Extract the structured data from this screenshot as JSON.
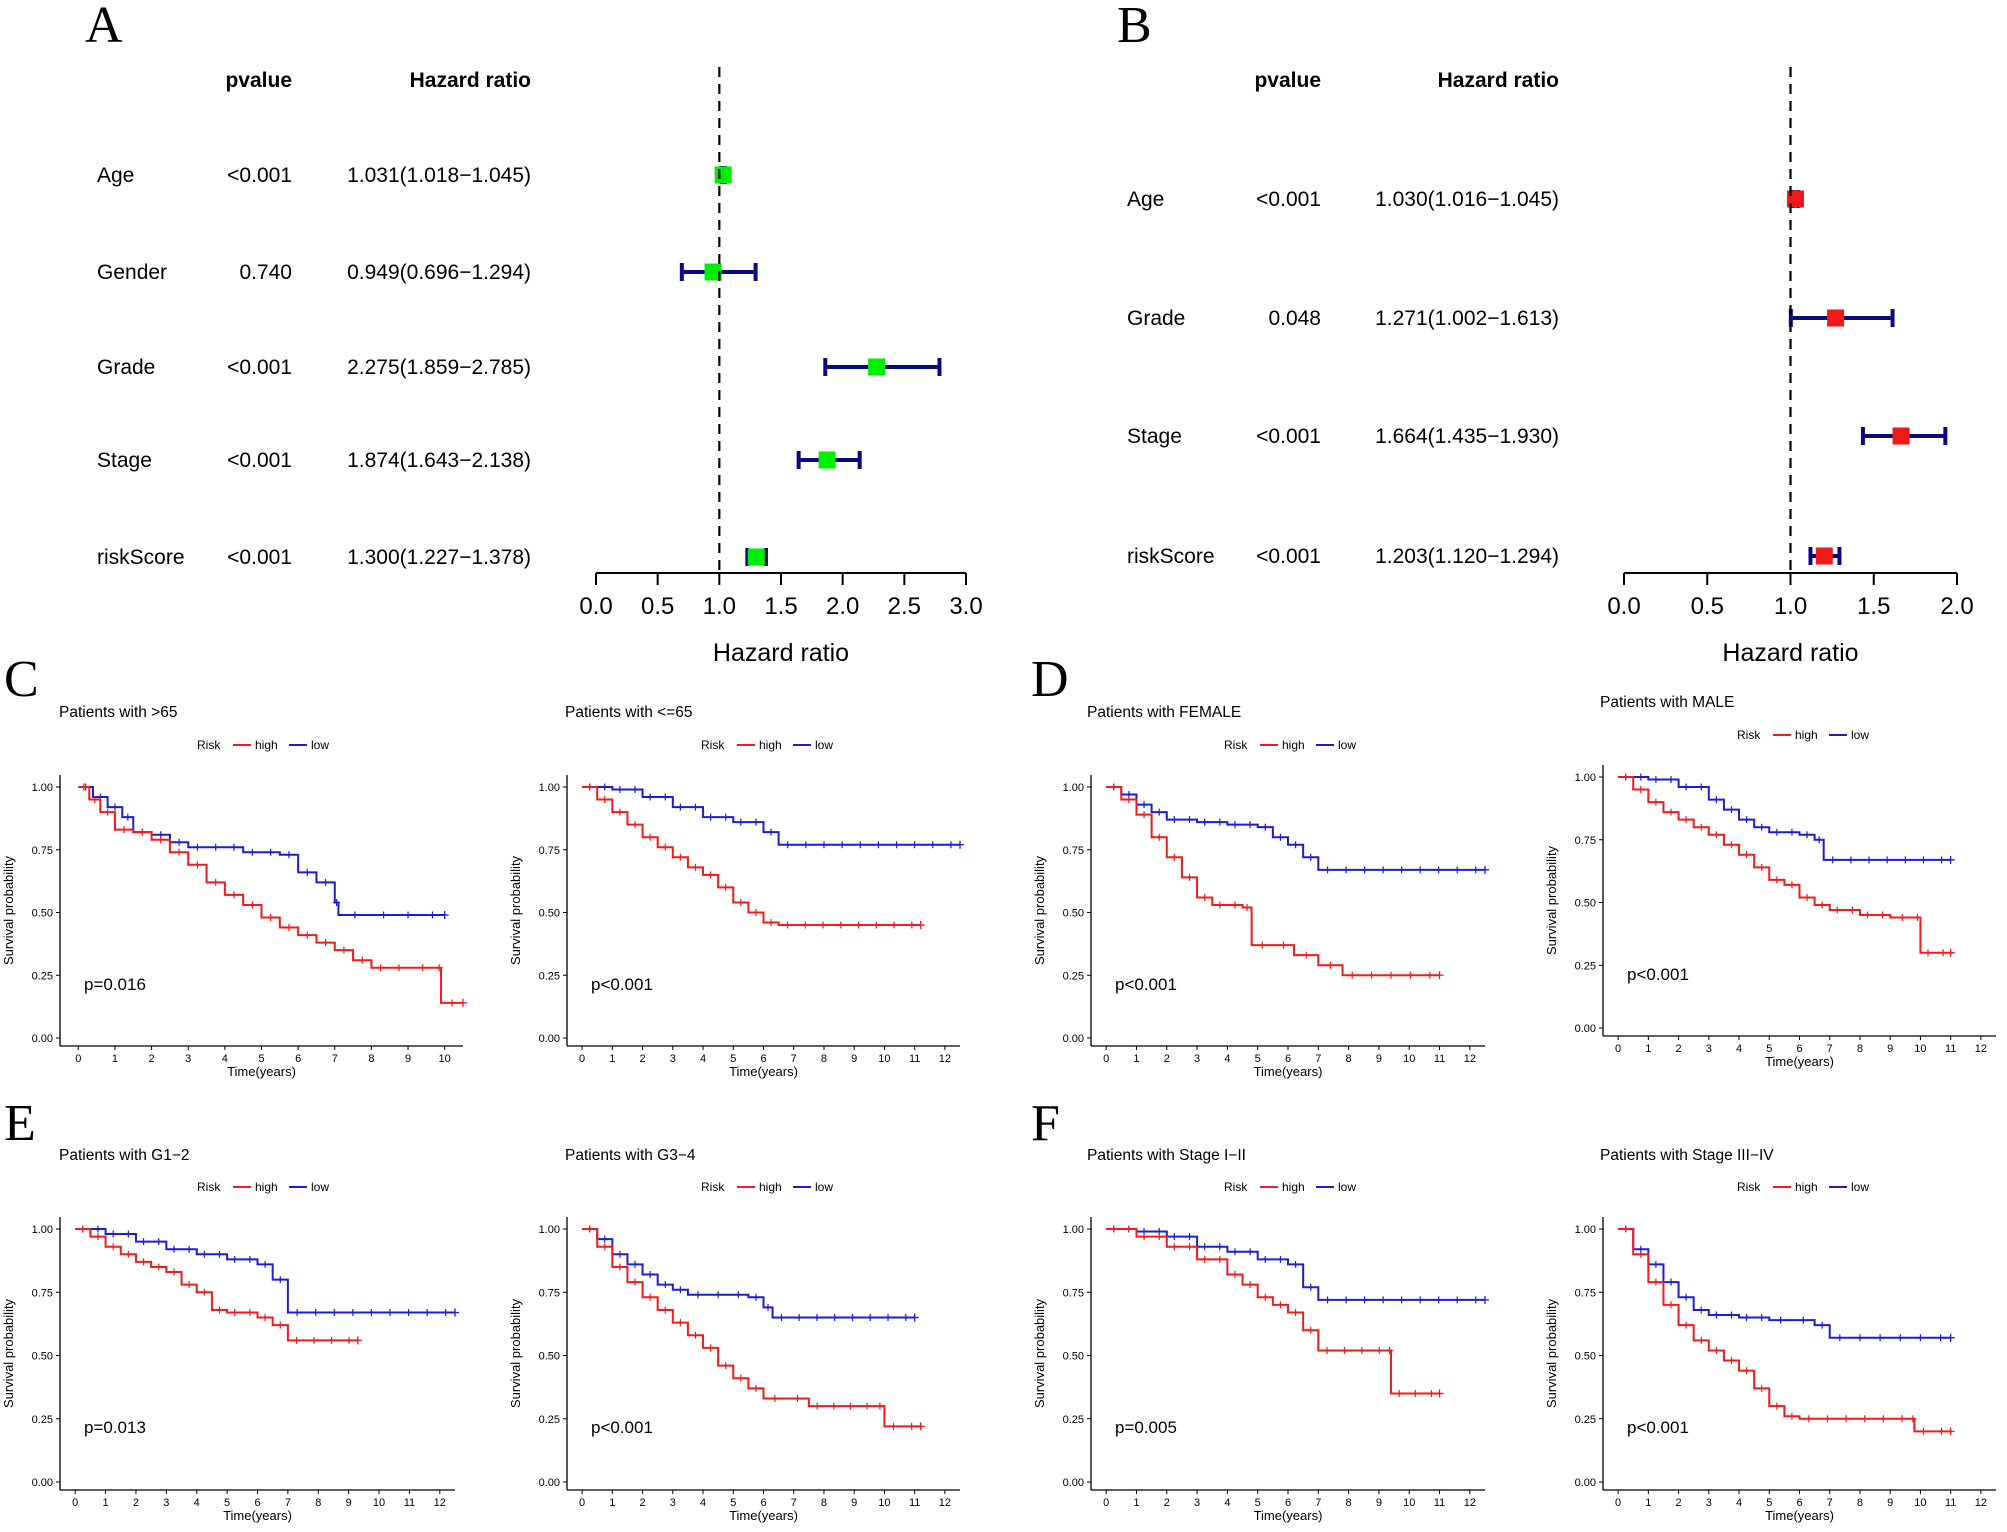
{
  "colors": {
    "high": "#ee1c1c",
    "low": "#1d1dd6",
    "forest_a_box": "#00ee00",
    "forest_b_box": "#ee1a1a",
    "ci_line": "#0a0a80"
  },
  "chart_data": [
    {
      "panel": "A",
      "type": "forest",
      "header_pvalue": "pvalue",
      "header_hr": "Hazard ratio",
      "xlabel": "Hazard ratio",
      "xlim": [
        0,
        3
      ],
      "ticks": [
        "0.0",
        "0.5",
        "1.0",
        "1.5",
        "2.0",
        "2.5",
        "3.0"
      ],
      "rows": [
        {
          "name": "Age",
          "pvalue": "<0.001",
          "hr_text": "1.031(1.018−1.045)",
          "hr": 1.031,
          "lo": 1.018,
          "hi": 1.045
        },
        {
          "name": "Gender",
          "pvalue": "0.740",
          "hr_text": "0.949(0.696−1.294)",
          "hr": 0.949,
          "lo": 0.696,
          "hi": 1.294
        },
        {
          "name": "Grade",
          "pvalue": "<0.001",
          "hr_text": "2.275(1.859−2.785)",
          "hr": 2.275,
          "lo": 1.859,
          "hi": 2.785
        },
        {
          "name": "Stage",
          "pvalue": "<0.001",
          "hr_text": "1.874(1.643−2.138)",
          "hr": 1.874,
          "lo": 1.643,
          "hi": 2.138
        },
        {
          "name": "riskScore",
          "pvalue": "<0.001",
          "hr_text": "1.300(1.227−1.378)",
          "hr": 1.3,
          "lo": 1.227,
          "hi": 1.378
        }
      ]
    },
    {
      "panel": "B",
      "type": "forest",
      "header_pvalue": "pvalue",
      "header_hr": "Hazard ratio",
      "xlabel": "Hazard ratio",
      "xlim": [
        0,
        2
      ],
      "ticks": [
        "0.0",
        "0.5",
        "1.0",
        "1.5",
        "2.0"
      ],
      "rows": [
        {
          "name": "Age",
          "pvalue": "<0.001",
          "hr_text": "1.030(1.016−1.045)",
          "hr": 1.03,
          "lo": 1.016,
          "hi": 1.045
        },
        {
          "name": "Grade",
          "pvalue": "0.048",
          "hr_text": "1.271(1.002−1.613)",
          "hr": 1.271,
          "lo": 1.002,
          "hi": 1.613
        },
        {
          "name": "Stage",
          "pvalue": "<0.001",
          "hr_text": "1.664(1.435−1.930)",
          "hr": 1.664,
          "lo": 1.435,
          "hi": 1.93
        },
        {
          "name": "riskScore",
          "pvalue": "<0.001",
          "hr_text": "1.203(1.120−1.294)",
          "hr": 1.203,
          "lo": 1.12,
          "hi": 1.294
        }
      ]
    },
    {
      "panel": "C",
      "type": "line",
      "title": "Patients with >65",
      "pvalue": "p=0.016",
      "xmax": 10,
      "high": [
        [
          0,
          1
        ],
        [
          0.3,
          0.95
        ],
        [
          0.6,
          0.9
        ],
        [
          1,
          0.83
        ],
        [
          1.5,
          0.82
        ],
        [
          2,
          0.79
        ],
        [
          2.5,
          0.74
        ],
        [
          3,
          0.69
        ],
        [
          3.5,
          0.62
        ],
        [
          4,
          0.57
        ],
        [
          4.5,
          0.53
        ],
        [
          5,
          0.48
        ],
        [
          5.5,
          0.44
        ],
        [
          6,
          0.41
        ],
        [
          6.5,
          0.38
        ],
        [
          7,
          0.35
        ],
        [
          7.5,
          0.31
        ],
        [
          8,
          0.28
        ],
        [
          9,
          0.28
        ],
        [
          9.8,
          0.28
        ],
        [
          9.9,
          0.14
        ],
        [
          10.5,
          0.14
        ]
      ],
      "low": [
        [
          0,
          1
        ],
        [
          0.4,
          0.96
        ],
        [
          0.8,
          0.92
        ],
        [
          1.2,
          0.88
        ],
        [
          1.5,
          0.82
        ],
        [
          2,
          0.81
        ],
        [
          2.5,
          0.78
        ],
        [
          3,
          0.76
        ],
        [
          4,
          0.76
        ],
        [
          4.5,
          0.74
        ],
        [
          5.5,
          0.73
        ],
        [
          6,
          0.66
        ],
        [
          6.5,
          0.62
        ],
        [
          7,
          0.54
        ],
        [
          7.1,
          0.49
        ],
        [
          8,
          0.49
        ],
        [
          10,
          0.49
        ]
      ],
      "legend_title": "Risk",
      "legend_high": "high",
      "legend_low": "low",
      "ylabel": "Survival probability",
      "xlabel": "Time(years)"
    },
    {
      "panel": "C2",
      "type": "line",
      "title": "Patients with <=65",
      "pvalue": "p<0.001",
      "xmax": 12,
      "high": [
        [
          0,
          1
        ],
        [
          0.5,
          0.95
        ],
        [
          1,
          0.9
        ],
        [
          1.5,
          0.85
        ],
        [
          2,
          0.8
        ],
        [
          2.5,
          0.76
        ],
        [
          3,
          0.72
        ],
        [
          3.5,
          0.68
        ],
        [
          4,
          0.65
        ],
        [
          4.5,
          0.6
        ],
        [
          5,
          0.54
        ],
        [
          5.5,
          0.5
        ],
        [
          6,
          0.46
        ],
        [
          6.5,
          0.45
        ],
        [
          11.2,
          0.45
        ]
      ],
      "low": [
        [
          0,
          1
        ],
        [
          1,
          0.99
        ],
        [
          2,
          0.96
        ],
        [
          3,
          0.92
        ],
        [
          4,
          0.88
        ],
        [
          5,
          0.86
        ],
        [
          6,
          0.82
        ],
        [
          6.5,
          0.77
        ],
        [
          12.5,
          0.77
        ]
      ],
      "legend_title": "Risk",
      "legend_high": "high",
      "legend_low": "low",
      "ylabel": "Survival probability",
      "xlabel": "Time(years)"
    },
    {
      "panel": "D",
      "type": "line",
      "title": "Patients with FEMALE",
      "pvalue": "p<0.001",
      "xmax": 12,
      "high": [
        [
          0,
          1
        ],
        [
          0.5,
          0.95
        ],
        [
          1,
          0.89
        ],
        [
          1.5,
          0.8
        ],
        [
          2,
          0.72
        ],
        [
          2.5,
          0.64
        ],
        [
          3,
          0.56
        ],
        [
          3.5,
          0.53
        ],
        [
          4.5,
          0.52
        ],
        [
          4.8,
          0.37
        ],
        [
          5.5,
          0.37
        ],
        [
          6.2,
          0.33
        ],
        [
          7,
          0.29
        ],
        [
          7.8,
          0.25
        ],
        [
          11,
          0.25
        ]
      ],
      "low": [
        [
          0,
          1
        ],
        [
          0.5,
          0.97
        ],
        [
          1,
          0.93
        ],
        [
          1.5,
          0.9
        ],
        [
          2,
          0.87
        ],
        [
          3,
          0.86
        ],
        [
          4,
          0.85
        ],
        [
          5,
          0.84
        ],
        [
          5.5,
          0.8
        ],
        [
          6,
          0.77
        ],
        [
          6.5,
          0.72
        ],
        [
          7,
          0.67
        ],
        [
          12.5,
          0.67
        ]
      ],
      "legend_title": "Risk",
      "legend_high": "high",
      "legend_low": "low",
      "ylabel": "Survival probability",
      "xlabel": "Time(years)"
    },
    {
      "panel": "D2",
      "type": "line",
      "title": "Patients with MALE",
      "pvalue": "p<0.001",
      "xmax": 12,
      "high": [
        [
          0,
          1
        ],
        [
          0.5,
          0.95
        ],
        [
          1,
          0.9
        ],
        [
          1.5,
          0.86
        ],
        [
          2,
          0.83
        ],
        [
          2.5,
          0.8
        ],
        [
          3,
          0.77
        ],
        [
          3.5,
          0.73
        ],
        [
          4,
          0.69
        ],
        [
          4.5,
          0.64
        ],
        [
          5,
          0.59
        ],
        [
          5.5,
          0.57
        ],
        [
          6,
          0.52
        ],
        [
          6.5,
          0.49
        ],
        [
          7,
          0.47
        ],
        [
          8,
          0.45
        ],
        [
          9,
          0.44
        ],
        [
          9.8,
          0.44
        ],
        [
          10,
          0.3
        ],
        [
          11,
          0.3
        ]
      ],
      "low": [
        [
          0,
          1
        ],
        [
          1,
          0.99
        ],
        [
          2,
          0.96
        ],
        [
          3,
          0.91
        ],
        [
          3.5,
          0.87
        ],
        [
          4,
          0.83
        ],
        [
          4.5,
          0.8
        ],
        [
          5,
          0.78
        ],
        [
          6,
          0.77
        ],
        [
          6.5,
          0.75
        ],
        [
          6.8,
          0.67
        ],
        [
          11,
          0.67
        ]
      ],
      "legend_title": "Risk",
      "legend_high": "high",
      "legend_low": "low",
      "ylabel": "Survival probability",
      "xlabel": "Time(years)"
    },
    {
      "panel": "E",
      "type": "line",
      "title": "Patients with G1−2",
      "pvalue": "p=0.013",
      "xmax": 12,
      "high": [
        [
          0,
          1
        ],
        [
          0.5,
          0.97
        ],
        [
          1,
          0.93
        ],
        [
          1.5,
          0.9
        ],
        [
          2,
          0.87
        ],
        [
          2.5,
          0.85
        ],
        [
          3,
          0.83
        ],
        [
          3.5,
          0.78
        ],
        [
          4,
          0.75
        ],
        [
          4.5,
          0.68
        ],
        [
          5,
          0.67
        ],
        [
          6,
          0.65
        ],
        [
          6.5,
          0.62
        ],
        [
          7,
          0.56
        ],
        [
          9.3,
          0.56
        ]
      ],
      "low": [
        [
          0,
          1
        ],
        [
          1,
          0.98
        ],
        [
          2,
          0.95
        ],
        [
          3,
          0.92
        ],
        [
          4,
          0.9
        ],
        [
          5,
          0.88
        ],
        [
          6,
          0.86
        ],
        [
          6.5,
          0.8
        ],
        [
          7,
          0.67
        ],
        [
          12.5,
          0.67
        ]
      ],
      "legend_title": "Risk",
      "legend_high": "high",
      "legend_low": "low",
      "ylabel": "Survival probability",
      "xlabel": "Time(years)"
    },
    {
      "panel": "E2",
      "type": "line",
      "title": "Patients with G3−4",
      "pvalue": "p<0.001",
      "xmax": 12,
      "high": [
        [
          0,
          1
        ],
        [
          0.5,
          0.93
        ],
        [
          1,
          0.85
        ],
        [
          1.5,
          0.79
        ],
        [
          2,
          0.73
        ],
        [
          2.5,
          0.68
        ],
        [
          3,
          0.63
        ],
        [
          3.5,
          0.58
        ],
        [
          4,
          0.53
        ],
        [
          4.5,
          0.46
        ],
        [
          5,
          0.41
        ],
        [
          5.5,
          0.37
        ],
        [
          6,
          0.33
        ],
        [
          7.5,
          0.3
        ],
        [
          9.7,
          0.3
        ],
        [
          10,
          0.22
        ],
        [
          11.2,
          0.22
        ]
      ],
      "low": [
        [
          0,
          1
        ],
        [
          0.5,
          0.96
        ],
        [
          1,
          0.9
        ],
        [
          1.5,
          0.86
        ],
        [
          2,
          0.82
        ],
        [
          2.5,
          0.78
        ],
        [
          3,
          0.76
        ],
        [
          3.5,
          0.74
        ],
        [
          5.5,
          0.73
        ],
        [
          6,
          0.69
        ],
        [
          6.3,
          0.65
        ],
        [
          11,
          0.65
        ]
      ],
      "legend_title": "Risk",
      "legend_high": "high",
      "legend_low": "low",
      "ylabel": "Survival probability",
      "xlabel": "Time(years)"
    },
    {
      "panel": "F",
      "type": "line",
      "title": "Patients with Stage I−II",
      "pvalue": "p=0.005",
      "xmax": 12,
      "high": [
        [
          0,
          1
        ],
        [
          1,
          0.97
        ],
        [
          2,
          0.93
        ],
        [
          3,
          0.88
        ],
        [
          4,
          0.82
        ],
        [
          4.5,
          0.78
        ],
        [
          5,
          0.73
        ],
        [
          5.5,
          0.7
        ],
        [
          6,
          0.67
        ],
        [
          6.5,
          0.6
        ],
        [
          7,
          0.52
        ],
        [
          9.3,
          0.52
        ],
        [
          9.4,
          0.35
        ],
        [
          11,
          0.35
        ]
      ],
      "low": [
        [
          0,
          1
        ],
        [
          1,
          0.99
        ],
        [
          2,
          0.97
        ],
        [
          3,
          0.93
        ],
        [
          4,
          0.91
        ],
        [
          5,
          0.88
        ],
        [
          6,
          0.86
        ],
        [
          6.5,
          0.77
        ],
        [
          7,
          0.72
        ],
        [
          12.5,
          0.72
        ]
      ],
      "legend_title": "Risk",
      "legend_high": "high",
      "legend_low": "low",
      "ylabel": "Survival probability",
      "xlabel": "Time(years)"
    },
    {
      "panel": "F2",
      "type": "line",
      "title": "Patients with Stage III−IV",
      "pvalue": "p<0.001",
      "xmax": 12,
      "high": [
        [
          0,
          1
        ],
        [
          0.5,
          0.9
        ],
        [
          1,
          0.79
        ],
        [
          1.5,
          0.7
        ],
        [
          2,
          0.62
        ],
        [
          2.5,
          0.56
        ],
        [
          3,
          0.52
        ],
        [
          3.5,
          0.48
        ],
        [
          4,
          0.44
        ],
        [
          4.5,
          0.37
        ],
        [
          5,
          0.3
        ],
        [
          5.5,
          0.26
        ],
        [
          6,
          0.25
        ],
        [
          9.7,
          0.25
        ],
        [
          9.8,
          0.2
        ],
        [
          11,
          0.2
        ]
      ],
      "low": [
        [
          0,
          1
        ],
        [
          0.5,
          0.92
        ],
        [
          1,
          0.86
        ],
        [
          1.5,
          0.79
        ],
        [
          2,
          0.73
        ],
        [
          2.5,
          0.68
        ],
        [
          3,
          0.66
        ],
        [
          4,
          0.65
        ],
        [
          5,
          0.64
        ],
        [
          6.5,
          0.62
        ],
        [
          7,
          0.57
        ],
        [
          11,
          0.57
        ]
      ],
      "legend_title": "Risk",
      "legend_high": "high",
      "legend_low": "low",
      "ylabel": "Survival probability",
      "xlabel": "Time(years)"
    }
  ]
}
